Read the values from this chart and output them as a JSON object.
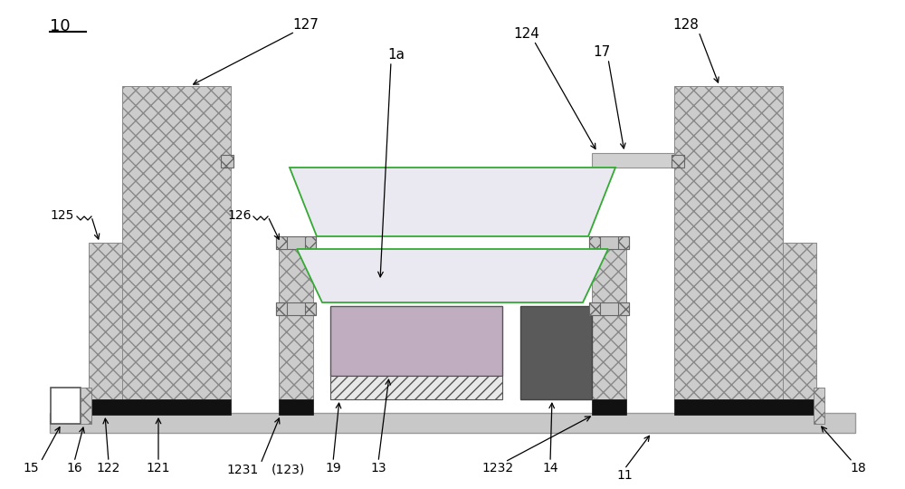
{
  "bg_color": "#ffffff",
  "crosshatch_fill": "#cccccc",
  "crosshatch_edge": "#888888",
  "black": "#111111",
  "dark_gray": "#5a5a5a",
  "mid_gray": "#909090",
  "light_gray": "#c8c8c8",
  "lighter_gray": "#e0e0e0",
  "pink_fill": "#c0aec0",
  "membrane_fill": "#eae8f0",
  "membrane_edge": "#33aa33",
  "bar17_fill": "#d0d0d0",
  "white_fill": "#ffffff",
  "base_fill": "#cccccc",
  "base_edge": "#999999",
  "hatch_fill": "#e8e8e8"
}
